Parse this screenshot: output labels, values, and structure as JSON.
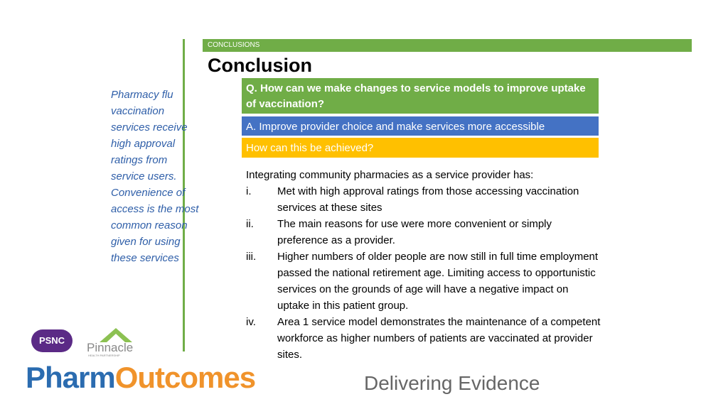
{
  "header": {
    "section": "CONCLUSIONS",
    "title": "Conclusion"
  },
  "sidebar": {
    "text": "Pharmacy flu vaccination services receive high approval ratings from service users. Convenience of access is the most common reason given for using these services"
  },
  "question": "Q. How can we make changes to service models to improve uptake of vaccination?",
  "answer": "A. Improve provider choice and make services more accessible",
  "how": "How can this be achieved?",
  "intro": "Integrating community pharmacies as a service provider has:",
  "list": [
    {
      "marker": "i.",
      "text": "Met with high approval ratings from those accessing vaccination services at these sites"
    },
    {
      "marker": "ii.",
      "text": "The main reasons for use were more convenient or simply preference as a provider."
    },
    {
      "marker": "iii.",
      "text": "Higher numbers of older people are now still in full time employment passed the national retirement age. Limiting access to opportunistic services on the grounds of age will have a negative impact on uptake in this patient group."
    },
    {
      "marker": "iv.",
      "text": "Area 1 service model demonstrates the maintenance of a competent workforce as higher numbers of patients are vaccinated at provider sites."
    }
  ],
  "footer": {
    "psnc": "PSNC",
    "pinnacle": "Pinnacle",
    "pinnacle_sub": "HEALTH PARTNERSHIP",
    "brand_1": "Pharm",
    "brand_2": "Outcomes",
    "tagline": "Delivering Evidence"
  }
}
